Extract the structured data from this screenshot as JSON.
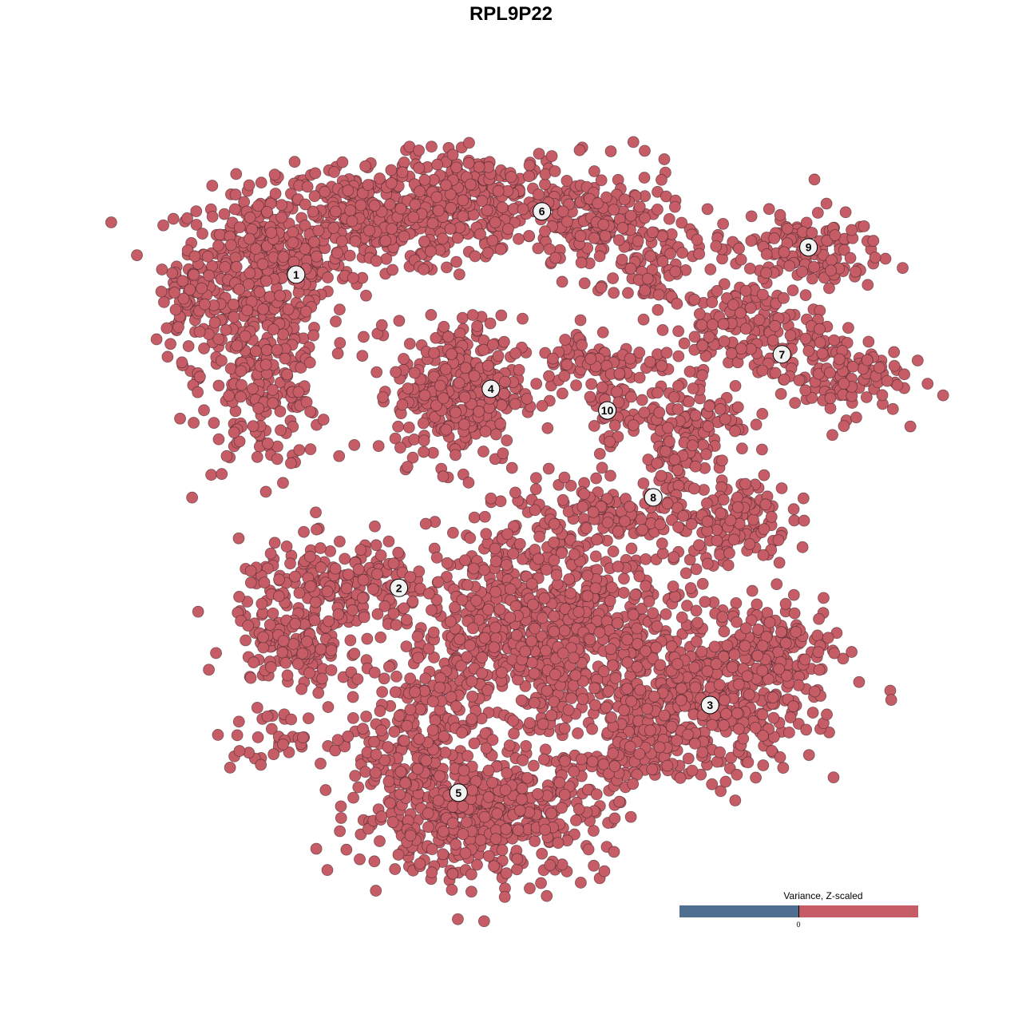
{
  "chart_data": {
    "type": "scatter",
    "title": "RPL9P22",
    "xlim": [
      -50,
      60
    ],
    "ylim": [
      -52,
      52
    ],
    "grid": false,
    "point_color": "#c65c66",
    "point_edge_color": "#3a2326",
    "clusters": [
      {
        "label": "1",
        "x": -29.9,
        "y": 32.9
      },
      {
        "label": "2",
        "x": -15.6,
        "y": -10.7
      },
      {
        "label": "3",
        "x": 27.7,
        "y": -27.0
      },
      {
        "label": "4",
        "x": -2.8,
        "y": 17.0
      },
      {
        "label": "5",
        "x": -7.3,
        "y": -39.2
      },
      {
        "label": "6",
        "x": 4.3,
        "y": 41.7
      },
      {
        "label": "7",
        "x": 37.7,
        "y": 21.8
      },
      {
        "label": "8",
        "x": 19.8,
        "y": 1.9
      },
      {
        "label": "9",
        "x": 41.4,
        "y": 36.7
      },
      {
        "label": "10",
        "x": 13.4,
        "y": 14.0
      }
    ],
    "point_density": [
      {
        "x": -34.4,
        "y": 34.4,
        "sx": 6.1,
        "sy": 5.0,
        "n": 350
      },
      {
        "x": -34.4,
        "y": 18.9,
        "sx": 4.4,
        "sy": 6.7,
        "n": 250
      },
      {
        "x": -18.9,
        "y": 41.1,
        "sx": 6.7,
        "sy": 3.9,
        "n": 300
      },
      {
        "x": -44.4,
        "y": 28.9,
        "sx": 2.2,
        "sy": 3.9,
        "n": 60
      },
      {
        "x": -4.4,
        "y": 43.3,
        "sx": 6.1,
        "sy": 3.3,
        "n": 250
      },
      {
        "x": 12.2,
        "y": 40.0,
        "sx": 5.6,
        "sy": 3.9,
        "n": 180
      },
      {
        "x": 20.0,
        "y": 34.4,
        "sx": 2.8,
        "sy": 2.8,
        "n": 60
      },
      {
        "x": -7.2,
        "y": 16.7,
        "sx": 4.4,
        "sy": 5.0,
        "n": 350
      },
      {
        "x": 12.2,
        "y": 21.1,
        "sx": 5.0,
        "sy": 2.2,
        "n": 80
      },
      {
        "x": 13.9,
        "y": 14.4,
        "sx": 2.0,
        "sy": 3.1,
        "n": 50
      },
      {
        "x": 32.2,
        "y": 25.6,
        "sx": 5.6,
        "sy": 3.3,
        "n": 150
      },
      {
        "x": 45.6,
        "y": 18.9,
        "sx": 4.4,
        "sy": 2.8,
        "n": 120
      },
      {
        "x": 40.0,
        "y": 36.1,
        "sx": 6.1,
        "sy": 2.8,
        "n": 140
      },
      {
        "x": 25.6,
        "y": 13.3,
        "sx": 3.9,
        "sy": 2.8,
        "n": 80
      },
      {
        "x": 23.3,
        "y": 7.8,
        "sx": 2.2,
        "sy": 3.3,
        "n": 60
      },
      {
        "x": 31.1,
        "y": -1.1,
        "sx": 3.9,
        "sy": 3.3,
        "n": 120
      },
      {
        "x": 13.3,
        "y": 0.0,
        "sx": 6.7,
        "sy": 2.2,
        "n": 100
      },
      {
        "x": -24.4,
        "y": -11.1,
        "sx": 6.7,
        "sy": 3.3,
        "n": 200
      },
      {
        "x": -30.0,
        "y": -18.9,
        "sx": 4.4,
        "sy": 2.8,
        "n": 120
      },
      {
        "x": -33.3,
        "y": -31.7,
        "sx": 3.9,
        "sy": 1.7,
        "n": 40
      },
      {
        "x": 5.6,
        "y": -16.7,
        "sx": 10.0,
        "sy": 7.8,
        "n": 900
      },
      {
        "x": -4.4,
        "y": -42.2,
        "sx": 8.9,
        "sy": 4.4,
        "n": 500
      },
      {
        "x": -12.2,
        "y": -32.2,
        "sx": 4.4,
        "sy": 5.6,
        "n": 200
      },
      {
        "x": 28.9,
        "y": -26.7,
        "sx": 6.7,
        "sy": 5.0,
        "n": 400
      },
      {
        "x": 37.8,
        "y": -18.9,
        "sx": 3.9,
        "sy": 2.8,
        "n": 120
      },
      {
        "x": 17.8,
        "y": -31.1,
        "sx": 3.3,
        "sy": 3.9,
        "n": 120
      }
    ],
    "legend": {
      "title": "Variance, Z-scaled",
      "tick": "0",
      "low_color": "#506e90",
      "high_color": "#c65c66",
      "placement": "bottom-right"
    }
  }
}
